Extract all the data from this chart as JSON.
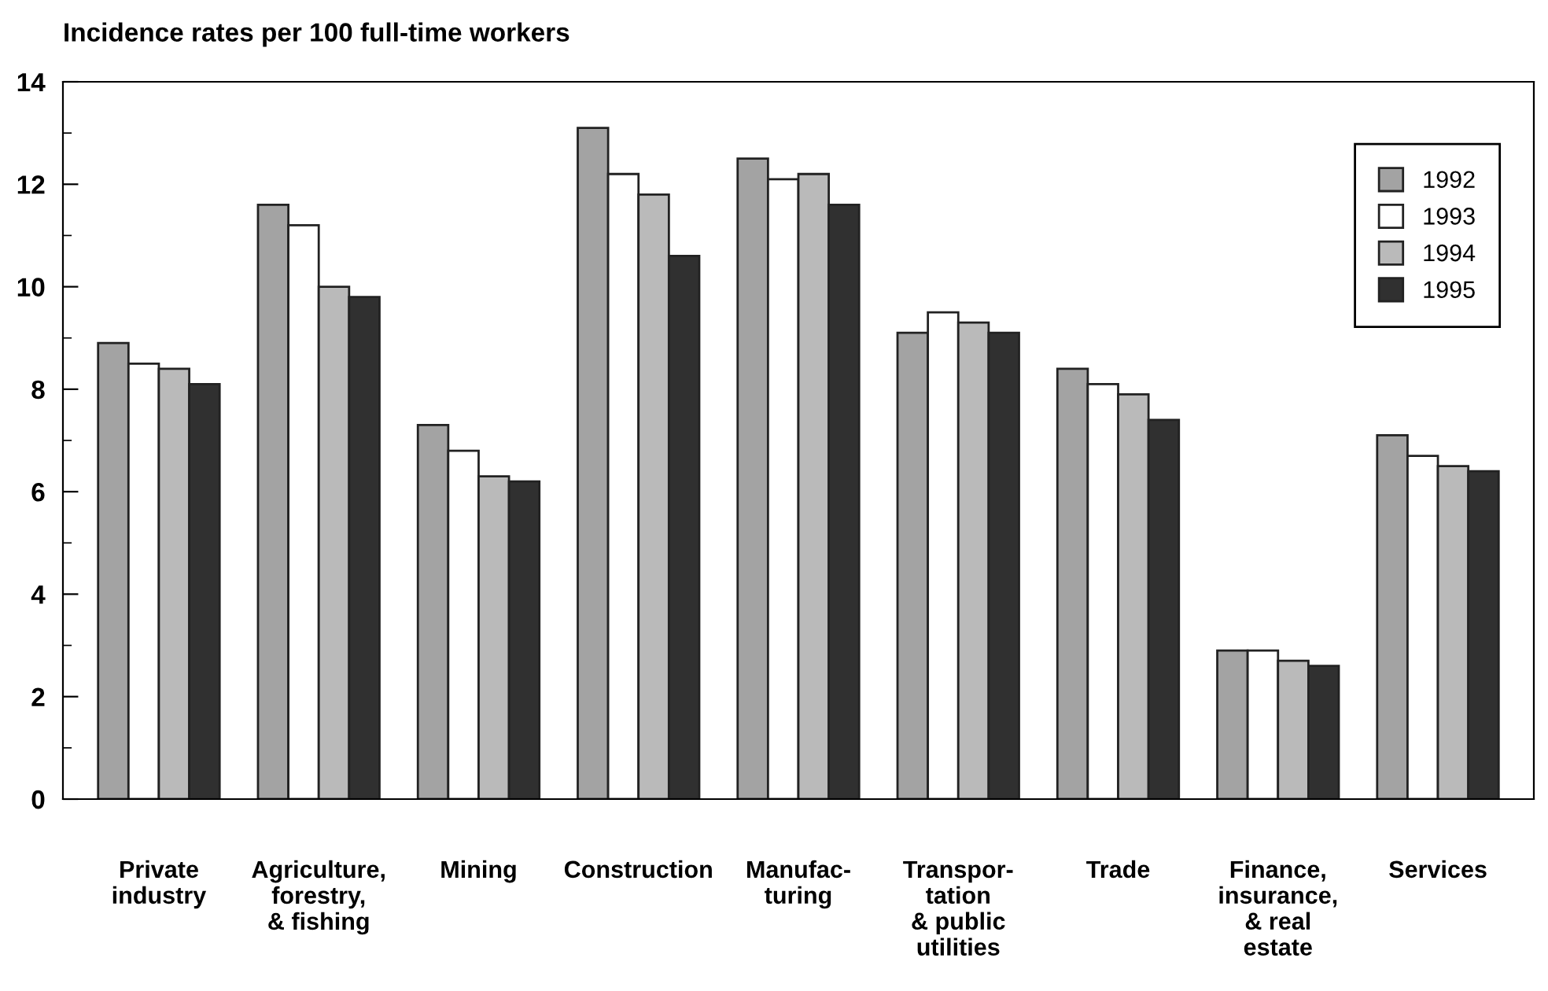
{
  "chart_data": {
    "type": "bar",
    "title": "Incidence rates per 100 full-time workers",
    "categories": [
      "Private\nindustry",
      "Agriculture,\nforestry,\n& fishing",
      "Mining",
      "Construction",
      "Manufac-\nturing",
      "Transpor-\ntation\n& public\nutilities",
      "Trade",
      "Finance,\ninsurance,\n& real\nestate",
      "Services"
    ],
    "series": [
      {
        "name": "1992",
        "color": "#a3a3a3",
        "values": [
          8.9,
          11.6,
          7.3,
          13.1,
          12.5,
          9.1,
          8.4,
          2.9,
          7.1
        ]
      },
      {
        "name": "1993",
        "color": "#ffffff",
        "values": [
          8.5,
          11.2,
          6.8,
          12.2,
          12.1,
          9.5,
          8.1,
          2.9,
          6.7
        ]
      },
      {
        "name": "1994",
        "color": "#bababa",
        "values": [
          8.4,
          10.0,
          6.3,
          11.8,
          12.2,
          9.3,
          7.9,
          2.7,
          6.5
        ]
      },
      {
        "name": "1995",
        "color": "#303030",
        "values": [
          8.1,
          9.8,
          6.2,
          10.6,
          11.6,
          9.1,
          7.4,
          2.6,
          6.4
        ]
      }
    ],
    "ylim": [
      0,
      14
    ],
    "yticks": [
      0,
      {
        "value": 1,
        "label": null
      },
      2,
      {
        "value": 3,
        "label": null
      },
      4,
      {
        "value": 5,
        "label": null
      },
      6,
      {
        "value": 7,
        "label": null
      },
      8,
      {
        "value": 9,
        "label": null
      },
      10,
      {
        "value": 11,
        "label": null
      },
      12,
      {
        "value": 13,
        "label": null
      },
      14
    ],
    "grid": false,
    "legend": "top right"
  }
}
